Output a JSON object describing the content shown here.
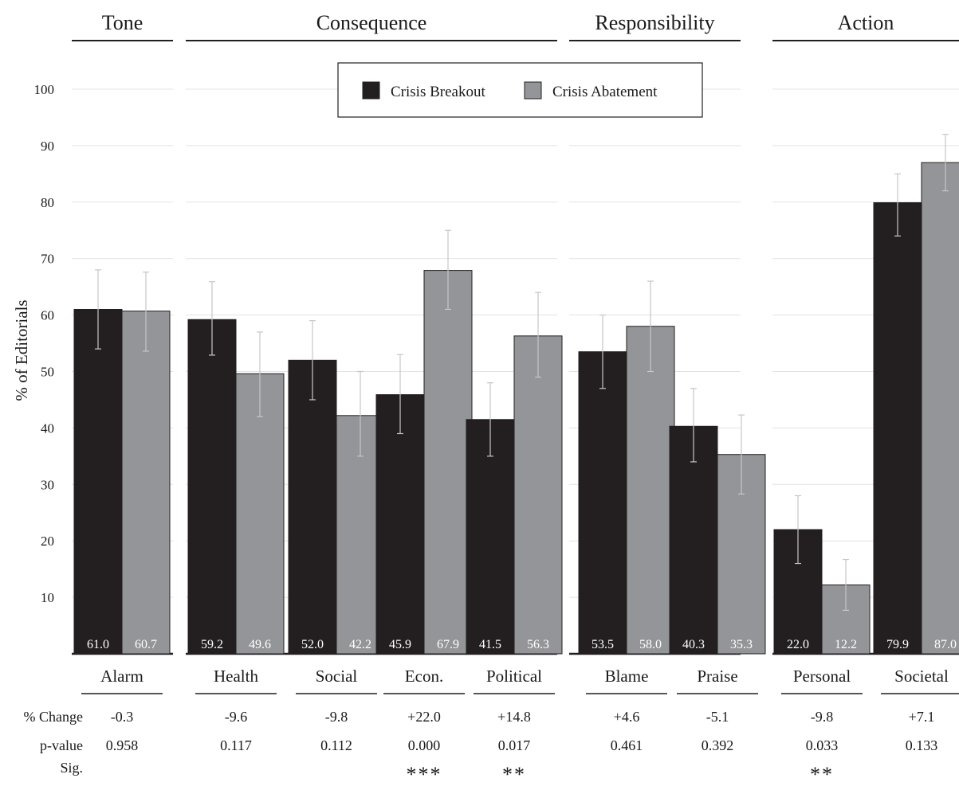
{
  "chart_data": {
    "type": "bar",
    "ylabel": "% of Editorials",
    "ylim": [
      0,
      100
    ],
    "yticks": [
      10,
      20,
      30,
      40,
      50,
      60,
      70,
      80,
      90,
      100
    ],
    "grid": true,
    "legend_position": "top-center",
    "series": [
      {
        "name": "Crisis Breakout",
        "color": "#231f20"
      },
      {
        "name": "Crisis Abatement",
        "color": "#939598"
      }
    ],
    "stat_row_labels": {
      "change": "% Change",
      "p": "p-value",
      "sig": "Sig."
    },
    "groups": [
      {
        "title": "Tone",
        "categories": [
          {
            "name": "Alarm",
            "values": [
              61.0,
              60.7
            ],
            "labels": [
              "61.0",
              "60.7"
            ],
            "errors": [
              [
                54,
                68
              ],
              [
                53.6,
                67.6
              ]
            ],
            "change": "-0.3",
            "p": "0.958",
            "sig": ""
          }
        ]
      },
      {
        "title": "Consequence",
        "categories": [
          {
            "name": "Health",
            "values": [
              59.2,
              49.6
            ],
            "labels": [
              "59.2",
              "49.6"
            ],
            "errors": [
              [
                52.9,
                65.9
              ],
              [
                42,
                57
              ]
            ],
            "change": "-9.6",
            "p": "0.117",
            "sig": ""
          },
          {
            "name": "Social",
            "values": [
              52.0,
              42.2
            ],
            "labels": [
              "52.0",
              "42.2"
            ],
            "errors": [
              [
                45,
                59
              ],
              [
                35,
                50
              ]
            ],
            "change": "-9.8",
            "p": "0.112",
            "sig": ""
          },
          {
            "name": "Econ.",
            "values": [
              45.9,
              67.9
            ],
            "labels": [
              "45.9",
              "67.9"
            ],
            "errors": [
              [
                39,
                53
              ],
              [
                61,
                75
              ]
            ],
            "change": "+22.0",
            "p": "0.000",
            "sig": "***"
          },
          {
            "name": "Political",
            "values": [
              41.5,
              56.3
            ],
            "labels": [
              "41.5",
              "56.3"
            ],
            "errors": [
              [
                35,
                48
              ],
              [
                49,
                64
              ]
            ],
            "change": "+14.8",
            "p": "0.017",
            "sig": "**"
          }
        ]
      },
      {
        "title": "Responsibility",
        "categories": [
          {
            "name": "Blame",
            "values": [
              53.5,
              58.0
            ],
            "labels": [
              "53.5",
              "58.0"
            ],
            "errors": [
              [
                47,
                60
              ],
              [
                50,
                66
              ]
            ],
            "change": "+4.6",
            "p": "0.461",
            "sig": ""
          },
          {
            "name": "Praise",
            "values": [
              40.3,
              35.3
            ],
            "labels": [
              "40.3",
              "35.3"
            ],
            "errors": [
              [
                34,
                47
              ],
              [
                28.3,
                42.3
              ]
            ],
            "change": "-5.1",
            "p": "0.392",
            "sig": ""
          }
        ]
      },
      {
        "title": "Action",
        "categories": [
          {
            "name": "Personal",
            "values": [
              22.0,
              12.2
            ],
            "labels": [
              "22.0",
              "12.2"
            ],
            "errors": [
              [
                16,
                28
              ],
              [
                7.7,
                16.7
              ]
            ],
            "change": "-9.8",
            "p": "0.033",
            "sig": "**"
          },
          {
            "name": "Societal",
            "values": [
              79.9,
              87.0
            ],
            "labels": [
              "79.9",
              "87.0"
            ],
            "errors": [
              [
                74,
                85
              ],
              [
                82,
                92
              ]
            ],
            "change": "+7.1",
            "p": "0.133",
            "sig": ""
          }
        ]
      }
    ]
  }
}
